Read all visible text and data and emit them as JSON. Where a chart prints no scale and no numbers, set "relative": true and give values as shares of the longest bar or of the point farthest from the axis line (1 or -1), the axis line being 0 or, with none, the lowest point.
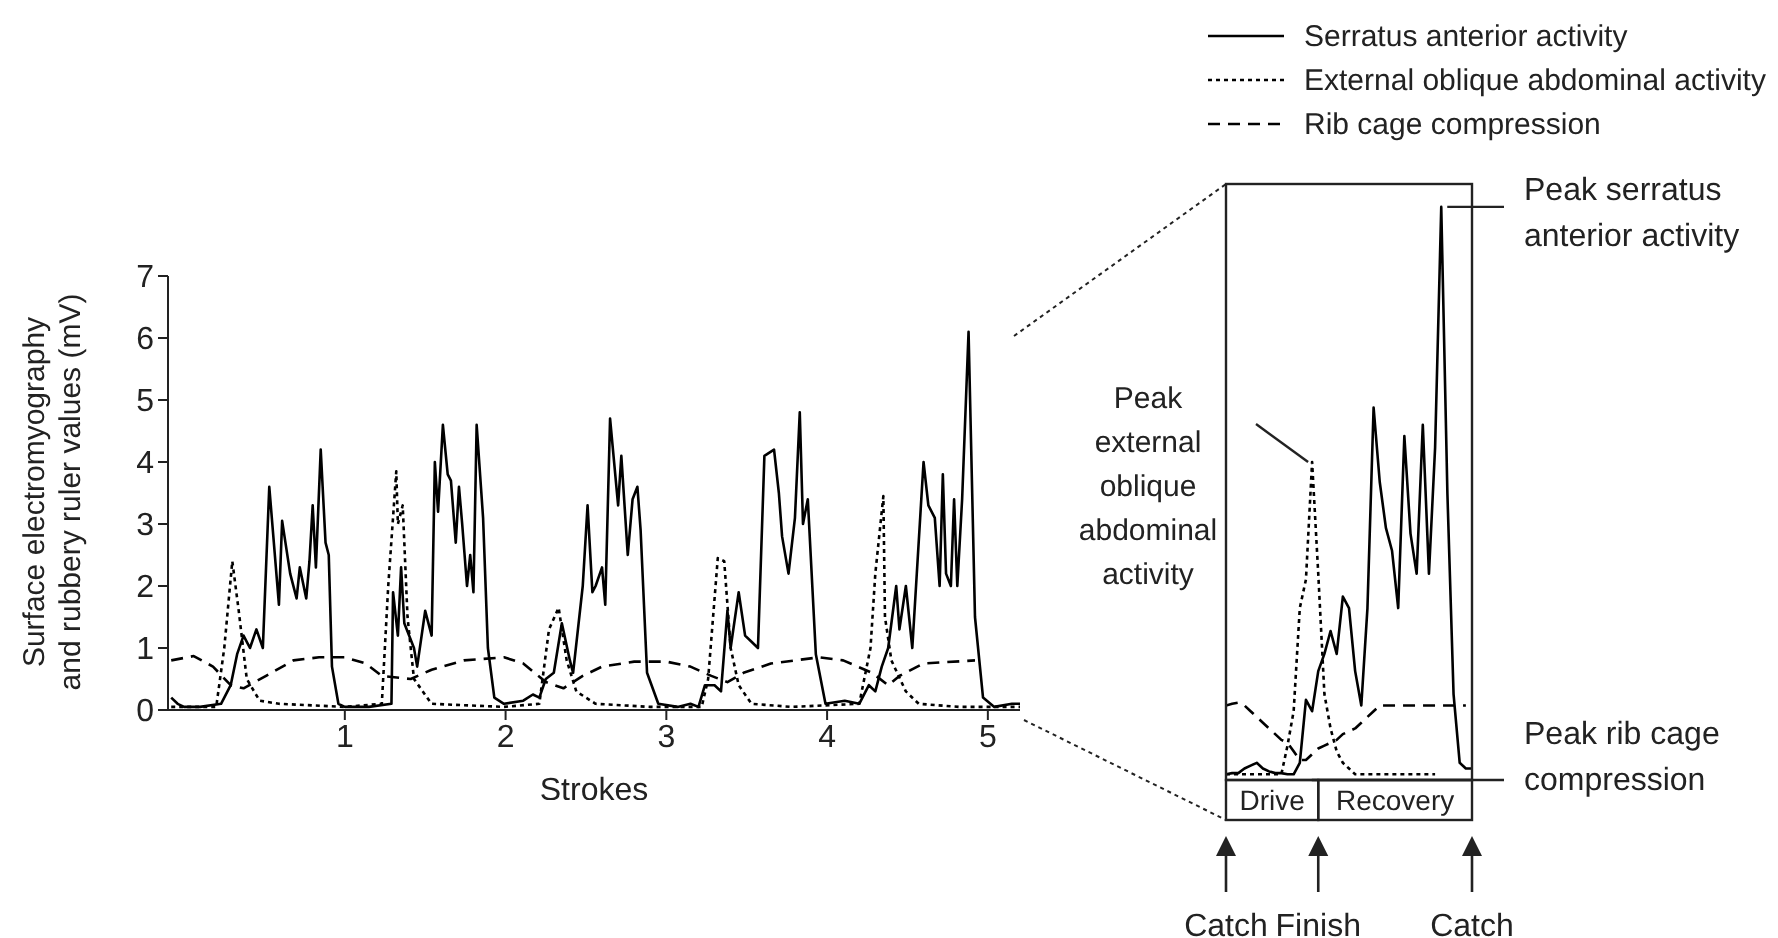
{
  "chart_data": [
    {
      "type": "line",
      "xlabel": "Strokes",
      "ylabel": "Surface electromyography\nand rubbery ruler values (mV)",
      "xlim": [
        -0.1,
        5.2
      ],
      "xticks": [
        1,
        2,
        3,
        4,
        5
      ],
      "ylim": [
        0,
        7
      ],
      "yticks": [
        0,
        1,
        2,
        3,
        4,
        5,
        6,
        7
      ],
      "legend": "top right",
      "series": [
        {
          "name": "Serratus anterior activity",
          "color": "#000000",
          "line_style": "solid",
          "x": [
            -0.08,
            -0.04,
            0.0,
            0.1,
            0.23,
            0.29,
            0.33,
            0.37,
            0.41,
            0.45,
            0.49,
            0.53,
            0.59,
            0.61,
            0.66,
            0.7,
            0.72,
            0.76,
            0.78,
            0.8,
            0.82,
            0.85,
            0.88,
            0.9,
            0.92,
            0.96,
            1.0,
            1.15,
            1.29,
            1.3,
            1.33,
            1.35,
            1.37,
            1.43,
            1.45,
            1.5,
            1.54,
            1.56,
            1.58,
            1.61,
            1.64,
            1.66,
            1.69,
            1.71,
            1.73,
            1.76,
            1.78,
            1.8,
            1.82,
            1.86,
            1.89,
            1.93,
            1.99,
            2.11,
            2.17,
            2.21,
            2.25,
            2.3,
            2.35,
            2.4,
            2.42,
            2.48,
            2.51,
            2.54,
            2.56,
            2.6,
            2.62,
            2.65,
            2.7,
            2.72,
            2.76,
            2.79,
            2.82,
            2.84,
            2.88,
            2.95,
            3.07,
            3.15,
            3.2,
            3.24,
            3.3,
            3.34,
            3.38,
            3.4,
            3.45,
            3.49,
            3.53,
            3.57,
            3.61,
            3.67,
            3.7,
            3.72,
            3.76,
            3.8,
            3.83,
            3.85,
            3.88,
            3.93,
            3.99,
            4.11,
            4.2,
            4.26,
            4.3,
            4.34,
            4.38,
            4.43,
            4.45,
            4.49,
            4.53,
            4.6,
            4.63,
            4.67,
            4.7,
            4.72,
            4.74,
            4.77,
            4.79,
            4.81,
            4.84,
            4.88,
            4.92,
            4.97,
            5.04,
            5.15,
            5.2
          ],
          "values": [
            0.2,
            0.1,
            0.05,
            0.05,
            0.1,
            0.4,
            0.9,
            1.2,
            1.0,
            1.3,
            1.0,
            3.6,
            1.7,
            3.05,
            2.2,
            1.8,
            2.3,
            1.8,
            2.4,
            3.3,
            2.3,
            4.2,
            2.7,
            2.5,
            0.7,
            0.1,
            0.05,
            0.05,
            0.1,
            1.9,
            1.2,
            2.3,
            1.4,
            1.0,
            0.7,
            1.6,
            1.2,
            4.0,
            3.2,
            4.6,
            3.8,
            3.7,
            2.7,
            3.6,
            3.0,
            2.0,
            2.5,
            1.9,
            4.6,
            3.1,
            1.0,
            0.2,
            0.1,
            0.15,
            0.25,
            0.2,
            0.5,
            0.6,
            1.4,
            0.8,
            0.6,
            2.0,
            3.3,
            1.9,
            2.0,
            2.3,
            1.7,
            4.7,
            3.3,
            4.1,
            2.5,
            3.4,
            3.6,
            2.9,
            0.6,
            0.1,
            0.05,
            0.1,
            0.05,
            0.4,
            0.4,
            0.3,
            1.6,
            1.0,
            1.9,
            1.2,
            1.1,
            1.0,
            4.1,
            4.2,
            3.5,
            2.8,
            2.2,
            3.1,
            4.8,
            3.0,
            3.4,
            0.9,
            0.1,
            0.15,
            0.1,
            0.4,
            0.3,
            0.7,
            1.0,
            2.0,
            1.3,
            2.0,
            1.0,
            4.0,
            3.3,
            3.1,
            2.0,
            3.8,
            2.2,
            2.0,
            3.4,
            2.0,
            3.4,
            6.1,
            1.5,
            0.2,
            0.05,
            0.1,
            0.1
          ]
        },
        {
          "name": "External oblique abdominal activity",
          "color": "#000000",
          "line_style": "dotted",
          "x": [
            -0.08,
            0.2,
            0.25,
            0.3,
            0.34,
            0.39,
            0.47,
            0.59,
            1.0,
            1.23,
            1.27,
            1.32,
            1.33,
            1.36,
            1.39,
            1.43,
            1.54,
            1.99,
            2.21,
            2.27,
            2.33,
            2.38,
            2.44,
            2.56,
            2.9,
            3.22,
            3.26,
            3.32,
            3.36,
            3.4,
            3.45,
            3.53,
            3.78,
            4.2,
            4.27,
            4.3,
            4.35,
            4.36,
            4.4,
            4.49,
            4.57,
            4.82,
            5.2
          ],
          "values": [
            0.05,
            0.05,
            1.0,
            2.4,
            1.6,
            0.5,
            0.15,
            0.1,
            0.05,
            0.1,
            2.0,
            3.85,
            3.0,
            3.3,
            1.5,
            0.5,
            0.1,
            0.05,
            0.1,
            1.3,
            1.65,
            0.8,
            0.3,
            0.1,
            0.05,
            0.05,
            0.5,
            2.45,
            2.4,
            1.0,
            0.4,
            0.1,
            0.05,
            0.1,
            1.0,
            2.2,
            3.45,
            1.5,
            0.8,
            0.3,
            0.1,
            0.05,
            0.05
          ]
        },
        {
          "name": "Rib cage compression",
          "color": "#000000",
          "line_style": "dashed",
          "x": [
            -0.08,
            0.06,
            0.18,
            0.29,
            0.37,
            0.51,
            0.68,
            0.84,
            1.0,
            1.13,
            1.23,
            1.41,
            1.54,
            1.74,
            1.99,
            2.11,
            2.25,
            2.36,
            2.48,
            2.6,
            2.8,
            3.0,
            3.15,
            3.28,
            3.38,
            3.48,
            3.65,
            3.95,
            4.1,
            4.28,
            4.38,
            4.45,
            4.6,
            4.92
          ],
          "values": [
            0.8,
            0.87,
            0.7,
            0.4,
            0.35,
            0.55,
            0.8,
            0.85,
            0.85,
            0.75,
            0.55,
            0.5,
            0.65,
            0.8,
            0.85,
            0.75,
            0.45,
            0.35,
            0.55,
            0.7,
            0.78,
            0.78,
            0.7,
            0.55,
            0.45,
            0.6,
            0.75,
            0.85,
            0.8,
            0.6,
            0.4,
            0.55,
            0.75,
            0.8
          ]
        }
      ]
    },
    {
      "type": "line",
      "relative": true,
      "tick_labels": "x",
      "categories": [
        "Catch",
        null,
        null,
        null,
        null,
        null,
        null,
        null,
        null,
        null,
        null,
        null,
        null,
        null,
        null,
        "Finish",
        null,
        null,
        null,
        null,
        null,
        null,
        null,
        null,
        null,
        null,
        null,
        null,
        null,
        null,
        null,
        null,
        null,
        null,
        null,
        null,
        null,
        null,
        null,
        null,
        "Catch"
      ],
      "annotations": [
        "Peak serratus\nanterior activity",
        "Peak\nexternal\noblique\nabdominal\nactivity",
        "Peak rib cage\ncompression",
        "Drive",
        "Recovery"
      ],
      "series": [
        {
          "color": "#000000",
          "line_style": "solid",
          "values": [
            0.01,
            0.012,
            0.012,
            0.02,
            0.025,
            0.03,
            0.02,
            0.015,
            0.012,
            0.012,
            0.01,
            0.01,
            0.03,
            0.14,
            0.12,
            0.19,
            0.22,
            0.26,
            0.22,
            0.32,
            0.3,
            0.19,
            0.13,
            0.3,
            0.65,
            0.52,
            0.44,
            0.4,
            0.3,
            0.6,
            0.43,
            0.36,
            0.62,
            0.36,
            0.58,
            1,
            0.5,
            0.15,
            0.03,
            0.02,
            0.02
          ]
        },
        {
          "color": "#000000",
          "line_style": "dotted",
          "values": [
            0.01,
            0.01,
            0.01,
            0.01,
            0.01,
            0.01,
            0.01,
            0.01,
            0.01,
            0.01,
            0.06,
            0.12,
            0.3,
            0.35,
            0.555,
            0.36,
            0.15,
            0.09,
            0.05,
            0.03,
            0.02,
            0.01,
            0.01,
            0.01,
            0.01,
            0.01,
            0.01,
            0.01,
            0.01,
            0.01,
            0.01,
            0.01,
            0.01,
            0.01,
            0.01,
            null,
            null,
            null,
            null,
            null,
            null
          ]
        },
        {
          "color": "#000000",
          "line_style": "dashed",
          "values": [
            0.13,
            0.133,
            0.135,
            0.13,
            0.12,
            0.11,
            0.1,
            0.09,
            0.08,
            0.07,
            0.065,
            0.05,
            0.035,
            0.035,
            0.045,
            0.055,
            0.06,
            0.065,
            0.07,
            0.08,
            0.085,
            0.09,
            0.1,
            0.11,
            0.12,
            0.13,
            0.13,
            0.13,
            0.13,
            0.13,
            0.13,
            0.13,
            0.13,
            0.13,
            0.13,
            0.13,
            0.13,
            0.13,
            0.13,
            0.13,
            null
          ]
        }
      ]
    }
  ]
}
